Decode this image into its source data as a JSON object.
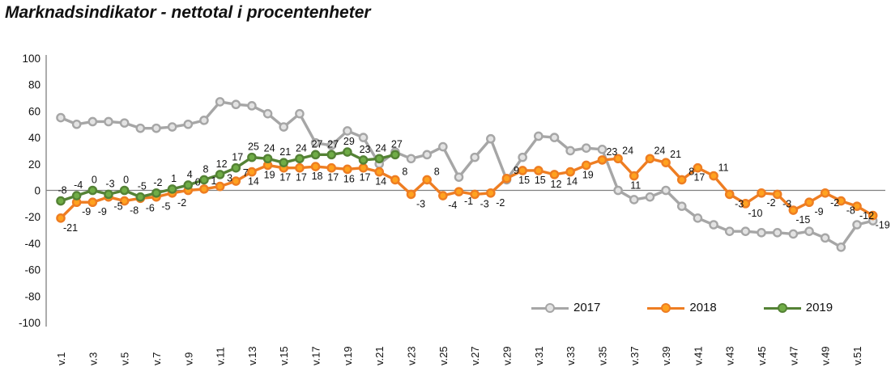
{
  "title": "Marknadsindikator - nettotal i procentenheter",
  "legend": {
    "items": [
      {
        "label": "2017",
        "color": "#A6A6A6",
        "marker_fill": "#E3E3E3"
      },
      {
        "label": "2018",
        "color": "#EE7D22",
        "marker_fill": "#FFA21F"
      },
      {
        "label": "2019",
        "color": "#548235",
        "marker_fill": "#70AD47"
      }
    ]
  },
  "chart_data": {
    "type": "line",
    "title": "Marknadsindikator - nettotal i procentenheter",
    "xlabel": "",
    "ylabel": "",
    "ylim": [
      -100,
      100
    ],
    "grid": false,
    "legend_position": "bottom-right",
    "y_ticks": [
      100,
      80,
      60,
      40,
      20,
      0,
      -20,
      -40,
      -60,
      -80,
      -100
    ],
    "x_tick_labels": [
      "v.1",
      "v.3",
      "v.5",
      "v.7",
      "v.9",
      "v.11",
      "v.13",
      "v.15",
      "v.17",
      "v.19",
      "v.21",
      "v.23",
      "v.25",
      "v.27",
      "v.29",
      "v.31",
      "v.33",
      "v.35",
      "v.37",
      "v.39",
      "v.41",
      "v.43",
      "v.45",
      "v.47",
      "v.49",
      "v.51"
    ],
    "x_unit": "week",
    "weeks_total": 52,
    "series": [
      {
        "name": "2017",
        "color": "#A6A6A6",
        "marker_fill": "#E3E3E3",
        "show_labels": false,
        "start_week": 1,
        "values": [
          55,
          50,
          52,
          52,
          51,
          47,
          47,
          48,
          50,
          53,
          67,
          65,
          64,
          58,
          48,
          58,
          36,
          34,
          45,
          40,
          20,
          29,
          24,
          27,
          33,
          10,
          25,
          39,
          8,
          25,
          41,
          40,
          30,
          32,
          31,
          0,
          -7,
          -5,
          0,
          -12,
          -21,
          -26,
          -31,
          -31,
          -32,
          -32,
          -33,
          -31,
          -36,
          -43,
          -26,
          -23
        ]
      },
      {
        "name": "2018",
        "color": "#EE7D22",
        "marker_fill": "#FFA21F",
        "show_labels": true,
        "start_week": 1,
        "values": [
          -21,
          -9,
          -9,
          -5,
          -8,
          -6,
          -5,
          -2,
          0,
          1,
          3,
          7,
          14,
          19,
          17,
          17,
          18,
          17,
          16,
          17,
          14,
          8,
          -3,
          8,
          -4,
          -1,
          -3,
          -2,
          9,
          15,
          15,
          12,
          14,
          19,
          23,
          24,
          11,
          24,
          21,
          8,
          17,
          11,
          -3,
          -10,
          -2,
          -3,
          -15,
          -9,
          -2,
          -8,
          -12,
          -19
        ],
        "labels_below_weeks": [
          13,
          14,
          15,
          16,
          17,
          18,
          19,
          20,
          21,
          30,
          31,
          32,
          33,
          34,
          37,
          41
        ]
      },
      {
        "name": "2019",
        "color": "#548235",
        "marker_fill": "#70AD47",
        "show_labels": true,
        "start_week": 1,
        "values": [
          -8,
          -4,
          0,
          -3,
          0,
          -5,
          -2,
          1,
          4,
          8,
          12,
          17,
          25,
          24,
          21,
          24,
          27,
          27,
          29,
          23,
          24,
          27
        ],
        "labels_below_weeks": []
      }
    ]
  }
}
